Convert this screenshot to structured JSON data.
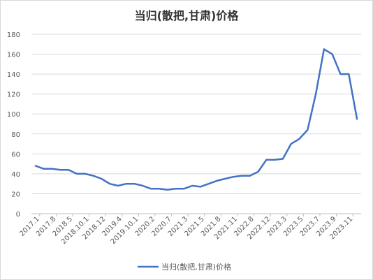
{
  "chart_data": {
    "type": "line",
    "title": "当归(散把,甘肃)价格",
    "xlabel": "",
    "ylabel": "",
    "ylim": [
      0,
      180
    ],
    "yticks": [
      0,
      20,
      40,
      60,
      80,
      100,
      120,
      140,
      160,
      180
    ],
    "grid": true,
    "legend_position": "bottom",
    "color": "#4472C4",
    "x_tick_labels": [
      "2017.1",
      "2017.8",
      "2018.5",
      "2018.10.1",
      "2018.12",
      "2019.4",
      "2019.10.1",
      "2020.2",
      "2020.7",
      "2021.3",
      "2021.5",
      "2021.8",
      "2021.11",
      "2022.8",
      "2022.12",
      "2023.3",
      "2023.5",
      "2023.7",
      "2023.9",
      "2023.11"
    ],
    "series": [
      {
        "name": "当归(散把,甘肃)价格",
        "values": [
          48,
          45,
          45,
          44,
          44,
          40,
          40,
          38,
          35,
          30,
          28,
          30,
          30,
          28,
          25,
          25,
          24,
          25,
          25,
          28,
          27,
          30,
          33,
          35,
          37,
          38,
          38,
          42,
          54,
          54,
          55,
          70,
          75,
          84,
          120,
          165,
          160,
          140,
          140,
          95
        ]
      }
    ]
  }
}
